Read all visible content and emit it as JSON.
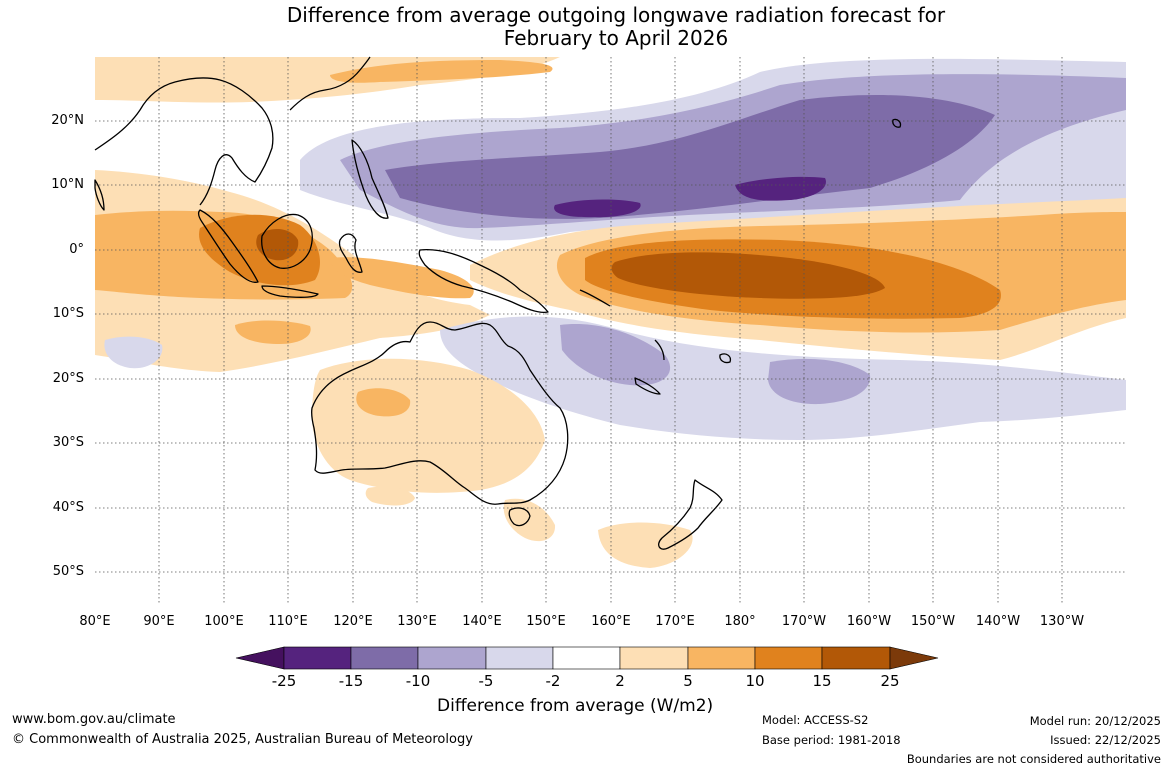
{
  "title": {
    "line1": "Difference from average outgoing longwave radiation forecast for",
    "line2": "February to April 2026"
  },
  "map": {
    "lat_labels": [
      "20°N",
      "10°N",
      "0°",
      "10°S",
      "20°S",
      "30°S",
      "40°S",
      "50°S"
    ],
    "lon_labels": [
      "80°E",
      "90°E",
      "100°E",
      "110°E",
      "120°E",
      "130°E",
      "140°E",
      "150°E",
      "160°E",
      "170°E",
      "180°",
      "170°W",
      "160°W",
      "150°W",
      "140°W",
      "130°W"
    ]
  },
  "colorbar": {
    "ticks": [
      "-25",
      "-15",
      "-10",
      "-5",
      "-2",
      "2",
      "5",
      "10",
      "15",
      "25"
    ],
    "colors": [
      "#45115f",
      "#55237e",
      "#7e6ca8",
      "#ada5cf",
      "#d8d8eb",
      "#ffffff",
      "#fddfb5",
      "#f8b562",
      "#e0821e",
      "#b25807",
      "#7c3a0a"
    ],
    "label": "Difference from average (W/m2)"
  },
  "footer": {
    "website": "www.bom.gov.au/climate",
    "copyright": "© Commonwealth of Australia 2025, Australian Bureau of Meteorology",
    "model": "Model: ACCESS-S2",
    "base_period": "Base period: 1981-2018",
    "model_run": "Model run: 20/12/2025",
    "issued": "Issued: 22/12/2025",
    "disclaimer": "Boundaries are not considered authoritative"
  }
}
